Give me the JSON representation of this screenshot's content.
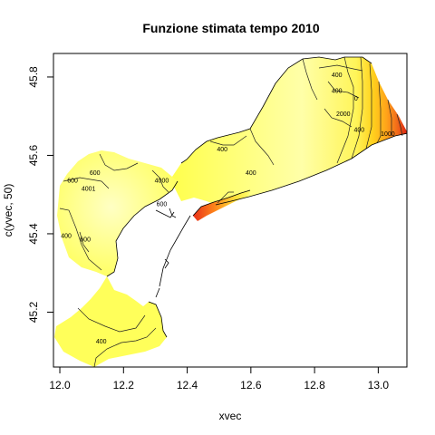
{
  "chart_data": {
    "type": "contour",
    "title": "Funzione stimata tempo 2010",
    "xlabel": "xvec",
    "ylabel": "c(yvec, 50)",
    "xlim": [
      11.98,
      13.09
    ],
    "ylim": [
      45.06,
      45.86
    ],
    "x_ticks": [
      12.0,
      12.2,
      12.4,
      12.6,
      12.8,
      13.0
    ],
    "x_tick_labels": [
      "12.0",
      "12.2",
      "12.4",
      "12.6",
      "12.8",
      "13.0"
    ],
    "y_ticks": [
      45.2,
      45.4,
      45.6,
      45.8
    ],
    "y_tick_labels": [
      "45.2",
      "45.4",
      "45.6",
      "45.8"
    ],
    "grid": false,
    "legend": "none",
    "colors": {
      "low": "#ffff4d",
      "light": "#ffffb8",
      "mid": "#ffd21e",
      "orange": "#ff8c1a",
      "high": "#e01c10"
    },
    "contour_labels": [
      {
        "text": "400",
        "x": 12.13,
        "y": 45.12
      },
      {
        "text": "600",
        "x": 12.04,
        "y": 45.53
      },
      {
        "text": "4001",
        "x": 12.09,
        "y": 45.51
      },
      {
        "text": "400",
        "x": 12.02,
        "y": 45.39
      },
      {
        "text": "600",
        "x": 12.08,
        "y": 45.38
      },
      {
        "text": "600",
        "x": 12.11,
        "y": 45.55
      },
      {
        "text": "4000",
        "x": 12.32,
        "y": 45.53
      },
      {
        "text": "600",
        "x": 12.32,
        "y": 45.47
      },
      {
        "text": "400",
        "x": 12.51,
        "y": 45.61
      },
      {
        "text": "400",
        "x": 12.6,
        "y": 45.55
      },
      {
        "text": "400",
        "x": 12.87,
        "y": 45.8
      },
      {
        "text": "400",
        "x": 12.87,
        "y": 45.76
      },
      {
        "text": "2000",
        "x": 12.89,
        "y": 45.7
      },
      {
        "text": "400",
        "x": 12.94,
        "y": 45.66
      },
      {
        "text": "0",
        "x": 12.93,
        "y": 45.74
      },
      {
        "text": "1000",
        "x": 13.03,
        "y": 45.65
      }
    ]
  }
}
